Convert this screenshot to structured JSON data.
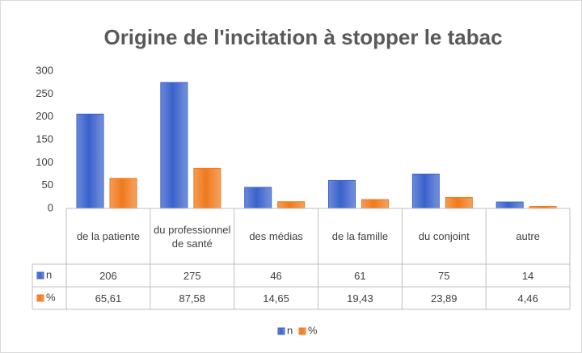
{
  "chart_data": {
    "type": "bar",
    "title": "Origine de l'incitation à stopper le tabac",
    "categories": [
      "de la patiente",
      "du professionnel de santé",
      "des médias",
      "de la famille",
      "du conjoint",
      "autre"
    ],
    "series": [
      {
        "name": "n",
        "color": "#3a62cc",
        "values": [
          206,
          275,
          46,
          61,
          75,
          14
        ]
      },
      {
        "name": "%",
        "color": "#f07a1c",
        "values": [
          65.61,
          87.58,
          14.65,
          19.43,
          23.89,
          4.46
        ],
        "value_labels": [
          "65,61",
          "87,58",
          "14,65",
          "19,43",
          "23,89",
          "4,46"
        ]
      }
    ],
    "ylim": [
      0,
      300
    ],
    "yticks": [
      0,
      50,
      100,
      150,
      200,
      250,
      300
    ],
    "grid": false,
    "legend": "bottom"
  }
}
